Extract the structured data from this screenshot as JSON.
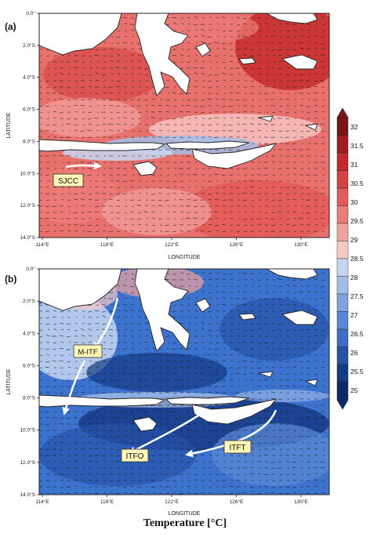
{
  "panels": [
    {
      "label": "(a)",
      "xlabel": "LONGITUDE",
      "ylabel": "LATITUDE",
      "x_ticks": [
        "114°E",
        "118°E",
        "122°E",
        "126°E",
        "130°E"
      ],
      "y_ticks": [
        "0.0°",
        "2.0°S",
        "4.0°S",
        "6.0°S",
        "8.0°S",
        "10.0°S",
        "12.0°S",
        "14.0°S"
      ],
      "annotations": [
        {
          "text": "SJCC"
        }
      ],
      "tone": "warm",
      "ocean_color": "#e8716d"
    },
    {
      "label": "(b)",
      "xlabel": "LONGITUDE",
      "ylabel": "LATITUDE",
      "x_ticks": [
        "114°E",
        "118°E",
        "122°E",
        "126°E",
        "130°E"
      ],
      "y_ticks": [
        "0.0°",
        "2.0°S",
        "4.0°S",
        "6.0°S",
        "8.0°S",
        "10.0°S",
        "12.0°S",
        "14.0°S"
      ],
      "annotations": [
        {
          "text": "M-ITF"
        },
        {
          "text": "ITFO"
        },
        {
          "text": "ITFT"
        }
      ],
      "tone": "cool",
      "ocean_color": "#3b73cf"
    }
  ],
  "colorbar": {
    "title": "Temperature [°C]",
    "ticks": [
      "32",
      "31.5",
      "31",
      "30.5",
      "30",
      "29.5",
      "29",
      "28.5",
      "28",
      "27.5",
      "27",
      "26.5",
      "26",
      "25.5",
      "25"
    ],
    "colors": [
      "#7d1419",
      "#a11c21",
      "#c42a2c",
      "#d84141",
      "#e35a58",
      "#ec7c78",
      "#f3a39f",
      "#f8c8c5",
      "#c7d6f0",
      "#a3bde8",
      "#7ea3df",
      "#5a88d4",
      "#3c6ec6",
      "#2653a8",
      "#163b86",
      "#0e2a66"
    ]
  }
}
